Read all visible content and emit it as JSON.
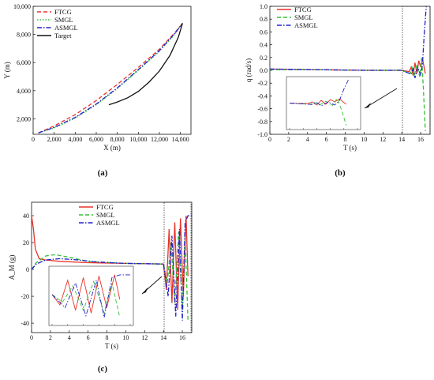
{
  "chart_data": [
    {
      "type": "line",
      "panel": "(a)",
      "xlabel": "X (m)",
      "ylabel": "Y (m)",
      "xlim": [
        0,
        15000
      ],
      "ylim": [
        900,
        10000
      ],
      "x_ticks": [
        0,
        2000,
        4000,
        6000,
        8000,
        10000,
        12000,
        14000
      ],
      "x_tick_labels": [
        "0",
        "2,000",
        "4,000",
        "6,000",
        "8,000",
        "10,000",
        "12,000",
        "14,000"
      ],
      "y_ticks": [
        2000,
        4000,
        6000,
        8000,
        10000
      ],
      "y_tick_labels": [
        "2,000",
        "4,000",
        "6,000",
        "8,000",
        "10,000"
      ],
      "legend_position": "top-left",
      "series": [
        {
          "name": "FTCG",
          "color": "#e8332a",
          "dash": "dash",
          "points": [
            [
              500,
              1000
            ],
            [
              2000,
              1500
            ],
            [
              4000,
              2300
            ],
            [
              6000,
              3300
            ],
            [
              8000,
              4450
            ],
            [
              10000,
              5650
            ],
            [
              12000,
              6950
            ],
            [
              13500,
              8150
            ],
            [
              14200,
              8800
            ]
          ]
        },
        {
          "name": "SMGL",
          "color": "#33c033",
          "dash": "dot",
          "points": [
            [
              500,
              1000
            ],
            [
              2000,
              1350
            ],
            [
              4000,
              2050
            ],
            [
              6000,
              3000
            ],
            [
              8000,
              4150
            ],
            [
              10000,
              5450
            ],
            [
              12000,
              6800
            ],
            [
              13500,
              8050
            ],
            [
              14200,
              8800
            ]
          ]
        },
        {
          "name": "ASMGL",
          "color": "#2222cc",
          "dash": "dashdot",
          "points": [
            [
              500,
              1000
            ],
            [
              2000,
              1400
            ],
            [
              4000,
              2100
            ],
            [
              6000,
              3050
            ],
            [
              8000,
              4200
            ],
            [
              10000,
              5500
            ],
            [
              12000,
              6850
            ],
            [
              13500,
              8100
            ],
            [
              14200,
              8800
            ]
          ]
        },
        {
          "name": "Target",
          "color": "#111111",
          "dash": "solid",
          "points": [
            [
              7200,
              3000
            ],
            [
              8000,
              3200
            ],
            [
              9000,
              3500
            ],
            [
              10000,
              3950
            ],
            [
              11000,
              4600
            ],
            [
              12000,
              5400
            ],
            [
              13000,
              6500
            ],
            [
              13800,
              7800
            ],
            [
              14200,
              8800
            ]
          ]
        }
      ]
    },
    {
      "type": "line",
      "panel": "(b)",
      "xlabel": "T (s)",
      "ylabel": "q (rad/s)",
      "xlim": [
        0,
        17
      ],
      "ylim": [
        -1.0,
        1.0
      ],
      "x_ticks": [
        0,
        2,
        4,
        6,
        8,
        10,
        12,
        14,
        16
      ],
      "x_tick_labels": [
        "0",
        "2",
        "4",
        "6",
        "8",
        "10",
        "12",
        "14",
        "16"
      ],
      "y_ticks": [
        -1.0,
        -0.8,
        -0.6,
        -0.4,
        -0.2,
        0.0,
        0.2,
        0.4,
        0.6,
        0.8,
        1.0
      ],
      "y_tick_labels": [
        "-1.0",
        "-0.8",
        "-0.6",
        "-0.4",
        "-0.2",
        "0.0",
        "0.2",
        "0.4",
        "0.6",
        "0.8",
        "1.0"
      ],
      "legend_position": "top-center",
      "series": [
        {
          "name": "FTCG",
          "color": "#e8332a",
          "dash": "solid",
          "points": [
            [
              0,
              0.02
            ],
            [
              5,
              0.01
            ],
            [
              10,
              0.0
            ],
            [
              14,
              0.0
            ],
            [
              14.8,
              -0.02
            ],
            [
              15.0,
              0.05
            ],
            [
              15.2,
              -0.08
            ],
            [
              15.4,
              0.12
            ],
            [
              15.6,
              -0.05
            ],
            [
              15.8,
              0.15
            ],
            [
              16.0,
              0.05
            ],
            [
              16.2,
              0.18
            ],
            [
              16.5,
              -0.05
            ]
          ]
        },
        {
          "name": "SMGL",
          "color": "#33c033",
          "dash": "dash",
          "points": [
            [
              0,
              0.01
            ],
            [
              5,
              0.01
            ],
            [
              10,
              0.0
            ],
            [
              14,
              0.0
            ],
            [
              14.9,
              -0.05
            ],
            [
              15.1,
              0.04
            ],
            [
              15.3,
              -0.1
            ],
            [
              15.6,
              0.08
            ],
            [
              15.9,
              -0.1
            ],
            [
              16.1,
              0.2
            ],
            [
              16.3,
              -0.3
            ],
            [
              16.5,
              -0.95
            ]
          ]
        },
        {
          "name": "ASMGL",
          "color": "#2222cc",
          "dash": "dashdot",
          "points": [
            [
              0,
              0.02
            ],
            [
              5,
              0.01
            ],
            [
              10,
              0.0
            ],
            [
              14,
              0.0
            ],
            [
              15.0,
              -0.06
            ],
            [
              15.2,
              0.02
            ],
            [
              15.4,
              -0.12
            ],
            [
              15.7,
              0.05
            ],
            [
              16.0,
              -0.08
            ],
            [
              16.2,
              0.1
            ],
            [
              16.4,
              0.6
            ],
            [
              16.6,
              1.0
            ]
          ]
        }
      ]
    },
    {
      "type": "line",
      "panel": "(c)",
      "xlabel": "T (s)",
      "ylabel": "A_M (g)",
      "xlim": [
        0,
        17
      ],
      "ylim": [
        -47,
        50
      ],
      "x_ticks": [
        0,
        2,
        4,
        6,
        8,
        10,
        12,
        14,
        16
      ],
      "x_tick_labels": [
        "0",
        "2",
        "4",
        "6",
        "8",
        "10",
        "12",
        "14",
        "16"
      ],
      "y_ticks": [
        -40,
        -20,
        0,
        20,
        40
      ],
      "y_tick_labels": [
        "-40",
        "-20",
        "0",
        "20",
        "40"
      ],
      "legend_position": "top-right",
      "series": [
        {
          "name": "FTCG",
          "color": "#e8332a",
          "dash": "solid",
          "points": [
            [
              0,
              40
            ],
            [
              0.2,
              30
            ],
            [
              0.4,
              15
            ],
            [
              0.8,
              8
            ],
            [
              1.5,
              7
            ],
            [
              3,
              6
            ],
            [
              6,
              5
            ],
            [
              10,
              4.5
            ],
            [
              14,
              4
            ],
            [
              14.3,
              -15
            ],
            [
              14.6,
              30
            ],
            [
              14.9,
              -25
            ],
            [
              15.2,
              35
            ],
            [
              15.5,
              -30
            ],
            [
              15.8,
              38
            ],
            [
              16.1,
              -20
            ],
            [
              16.4,
              40
            ],
            [
              16.6,
              -5
            ]
          ]
        },
        {
          "name": "SMGL",
          "color": "#33c033",
          "dash": "dash",
          "points": [
            [
              0,
              0
            ],
            [
              0.5,
              5
            ],
            [
              1.5,
              10
            ],
            [
              2.5,
              11
            ],
            [
              4,
              9
            ],
            [
              6,
              6
            ],
            [
              10,
              4.5
            ],
            [
              14,
              4
            ],
            [
              14.4,
              -10
            ],
            [
              14.8,
              20
            ],
            [
              15.2,
              -25
            ],
            [
              15.6,
              28
            ],
            [
              16.0,
              -30
            ],
            [
              16.3,
              25
            ],
            [
              16.6,
              -38
            ]
          ]
        },
        {
          "name": "ASMGL",
          "color": "#2222cc",
          "dash": "dashdot",
          "points": [
            [
              0,
              0
            ],
            [
              0.5,
              4
            ],
            [
              1.5,
              7
            ],
            [
              3,
              8
            ],
            [
              5,
              7
            ],
            [
              7,
              5.5
            ],
            [
              10,
              4.5
            ],
            [
              14,
              4
            ],
            [
              14.5,
              -20
            ],
            [
              14.9,
              25
            ],
            [
              15.3,
              -35
            ],
            [
              15.7,
              30
            ],
            [
              16.0,
              -38
            ],
            [
              16.3,
              35
            ],
            [
              16.6,
              40
            ],
            [
              17,
              40
            ]
          ]
        }
      ]
    }
  ],
  "captions": {
    "a": "(a)",
    "b": "(b)",
    "c": "(c)"
  }
}
